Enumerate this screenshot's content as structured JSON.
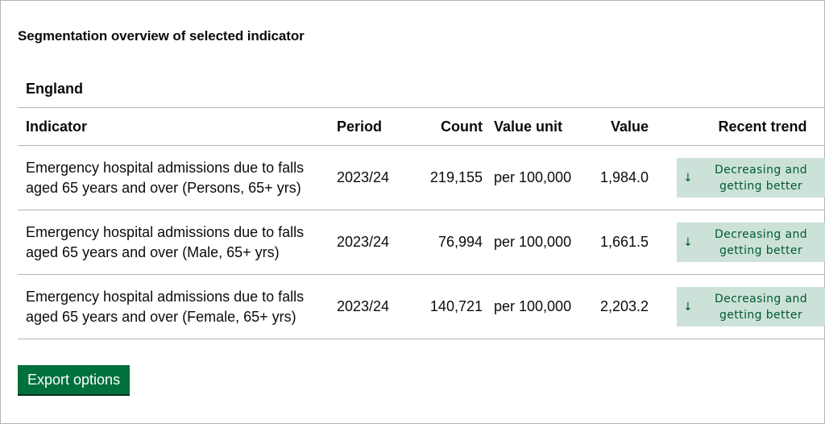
{
  "panel": {
    "title": "Segmentation overview of selected indicator",
    "region": "England"
  },
  "table": {
    "headers": {
      "indicator": "Indicator",
      "period": "Period",
      "count": "Count",
      "value_unit": "Value unit",
      "value": "Value",
      "recent_trend": "Recent trend"
    },
    "rows": [
      {
        "indicator": "Emergency hospital admissions due to falls aged 65 years and over (Persons, 65+ yrs)",
        "period": "2023/24",
        "count": "219,155",
        "value_unit": "per 100,000",
        "value": "1,984.0",
        "trend": "Decreasing and getting better",
        "trend_icon": "arrow-down-icon"
      },
      {
        "indicator": "Emergency hospital admissions due to falls aged 65 years and over (Male, 65+ yrs)",
        "period": "2023/24",
        "count": "76,994",
        "value_unit": "per 100,000",
        "value": "1,661.5",
        "trend": "Decreasing and getting better",
        "trend_icon": "arrow-down-icon"
      },
      {
        "indicator": "Emergency hospital admissions due to falls aged 65 years and over (Female, 65+ yrs)",
        "period": "2023/24",
        "count": "140,721",
        "value_unit": "per 100,000",
        "value": "2,203.2",
        "trend": "Decreasing and getting better",
        "trend_icon": "arrow-down-icon"
      }
    ]
  },
  "export_button": {
    "label": "Export options"
  },
  "colors": {
    "trend_badge_bg": "#cce2d8",
    "trend_badge_text": "#005a30",
    "button_bg": "#00703c",
    "border": "#b1b4b6"
  }
}
